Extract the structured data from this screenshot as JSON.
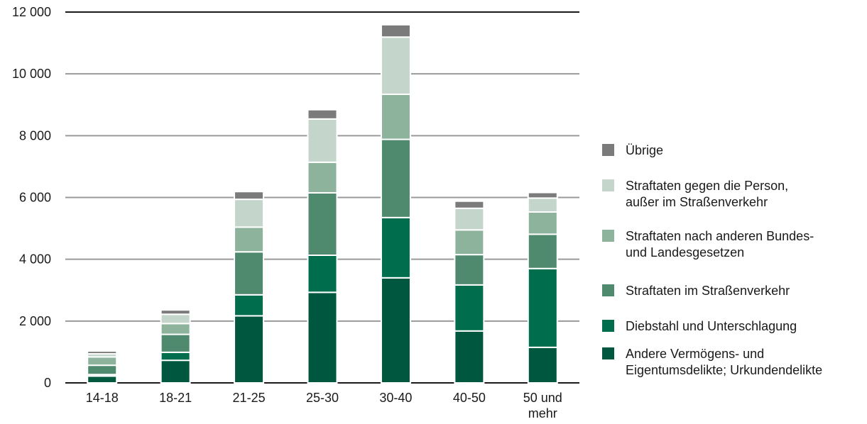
{
  "chart_data": {
    "type": "bar",
    "stacked": true,
    "title": "",
    "xlabel": "",
    "ylabel": "",
    "ylim": [
      0,
      12000
    ],
    "yticks": [
      0,
      2000,
      4000,
      6000,
      8000,
      10000,
      12000
    ],
    "ytick_labels": [
      "0",
      "2 000",
      "4 000",
      "6 000",
      "8 000",
      "10 000",
      "12 000"
    ],
    "grid": true,
    "legend_position": "right",
    "categories": [
      "14-18",
      "18-21",
      "21-25",
      "25-30",
      "30-40",
      "40-50",
      "50 und\nmehr"
    ],
    "series": [
      {
        "name": "Andere Vermögens- und\nEigentumsdelikte; Urkundendelikte",
        "color": "#00573f",
        "values": [
          220,
          730,
          2170,
          2930,
          3400,
          1680,
          1150
        ]
      },
      {
        "name": "Diebstahl und Unterschlagung",
        "color": "#006e4d",
        "values": [
          50,
          260,
          680,
          1200,
          1950,
          1490,
          2550
        ]
      },
      {
        "name": "Straftaten im Straßenverkehr",
        "color": "#4f8a6e",
        "values": [
          300,
          580,
          1390,
          2020,
          2530,
          980,
          1110
        ]
      },
      {
        "name": "Straftaten nach anderen Bundes-\nund Landesgesetzen",
        "color": "#8db39d",
        "values": [
          270,
          350,
          800,
          990,
          1460,
          800,
          720
        ]
      },
      {
        "name": "Straftaten gegen die Person,\naußer im Straßenverkehr",
        "color": "#c4d6cc",
        "values": [
          100,
          300,
          900,
          1400,
          1850,
          700,
          450
        ]
      },
      {
        "name": "Übrige",
        "color": "#7b7b7b",
        "values": [
          90,
          140,
          250,
          300,
          400,
          230,
          180
        ]
      }
    ]
  }
}
